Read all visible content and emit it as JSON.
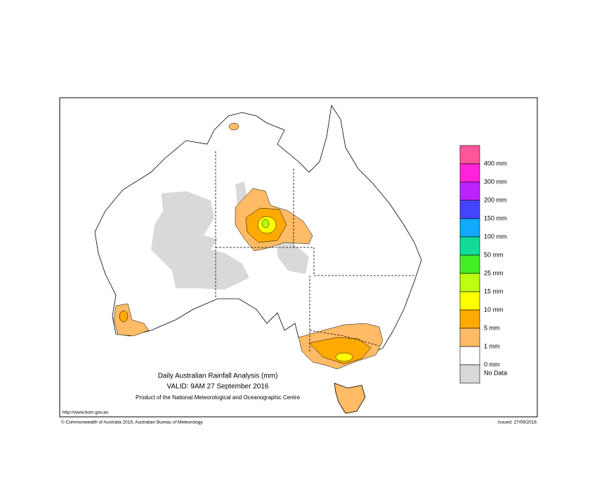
{
  "map": {
    "title": "Daily Australian Rainfall Analysis (mm)",
    "valid": "VALID: 9AM 27 September 2016",
    "product": "Product of the National Meteorological and Oceanographic Centre",
    "url": "http://www.bom.gov.au",
    "copyright": "© Commonwealth of Australia 2016, Australian Bureau of Meteorology",
    "issued": "Issued: 27/09/2016",
    "legend": {
      "colors": [
        "#ff5599",
        "#ff22dd",
        "#bb22ff",
        "#4444ff",
        "#11aaff",
        "#11dd99",
        "#44ee22",
        "#bbff11",
        "#ffff00",
        "#ffaa00",
        "#ffbb66",
        "#ffffff",
        "#d9d9d9"
      ],
      "labels": [
        "400 mm",
        "300 mm",
        "200 mm",
        "150 mm",
        "100 mm",
        "50 mm",
        "25 mm",
        "15 mm",
        "10 mm",
        "5 mm",
        "1 mm",
        "0 mm",
        "No Data"
      ]
    }
  }
}
